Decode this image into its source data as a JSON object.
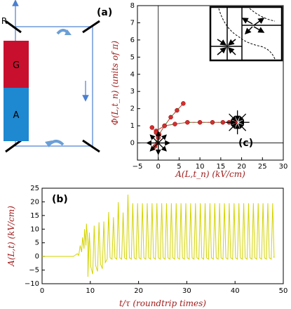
{
  "panel_a": {
    "label": "(a)",
    "r_label": "R",
    "g_label": "G",
    "a_label": "A",
    "colors": {
      "gain": "#c8102e",
      "absorber": "#1e88d0",
      "beam": "#4a7fd0",
      "arrow": "#6a9fd6"
    }
  },
  "panel_c_main": {
    "label": "(c)",
    "xlabel": "A(L,t_n) (kV/cm)",
    "ylabel": "Φ(L,t_n) (units of π)",
    "x_ticks": [
      "−5",
      "0",
      "5",
      "10",
      "15",
      "20",
      "25",
      "30"
    ],
    "y_ticks": [
      "0",
      "1",
      "2",
      "3",
      "4",
      "5",
      "6",
      "7",
      "8"
    ]
  },
  "chart_data": [
    {
      "type": "scatter",
      "title": "",
      "xlabel": "A(L,t_n) (kV/cm)",
      "ylabel": "Φ(L,t_n) (units of π)",
      "xlim": [
        -5,
        30
      ],
      "ylim": [
        -1,
        8
      ],
      "series": [
        {
          "color": "#d32f2f",
          "x": [
            -0.8,
            0.2,
            1.5,
            3.0,
            4.5,
            6.0
          ],
          "y": [
            -0.2,
            0.5,
            1.0,
            1.5,
            1.9,
            2.3
          ]
        },
        {
          "color": "#d32f2f",
          "x": [
            -0.5,
            1.5,
            4.0,
            7.0,
            10.0,
            13.0,
            15.5,
            17.0,
            18.5
          ],
          "y": [
            0.7,
            1.0,
            1.1,
            1.2,
            1.2,
            1.2,
            1.2,
            1.2,
            1.2
          ]
        },
        {
          "color": "#d32f2f",
          "x": [
            -1.5,
            -0.5,
            0.0,
            -0.2
          ],
          "y": [
            0.9,
            0.6,
            0.3,
            0.0
          ]
        }
      ],
      "grid": false
    },
    {
      "type": "line",
      "title": "",
      "xlabel": "t/τ (roundtrip times)",
      "ylabel": "A(L,t) (kV/cm)",
      "xlim": [
        0,
        50
      ],
      "ylim": [
        -10,
        25
      ],
      "series": [
        {
          "color": "#d4d400",
          "description_peaks_from": 8,
          "description_peaks_to": 48,
          "steady_peak": 19.5,
          "steady_trough": -1
        }
      ]
    }
  ],
  "panel_b": {
    "label": "(b)",
    "xlabel": "t/τ (roundtrip times)",
    "ylabel": "A(L,t) (kV/cm)",
    "x_ticks": [
      "0",
      "10",
      "20",
      "30",
      "40",
      "50"
    ],
    "y_ticks": [
      "−10",
      "−5",
      "0",
      "5",
      "10",
      "15",
      "20",
      "25"
    ]
  }
}
